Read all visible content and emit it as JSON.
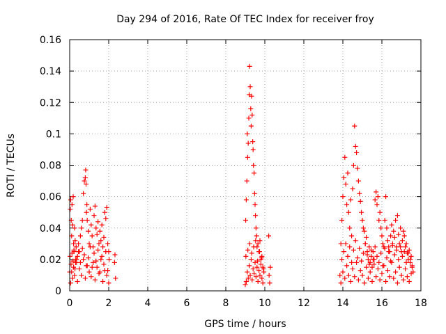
{
  "chart_data": {
    "type": "scatter",
    "title": "Day 294 of 2016, Rate Of TEC Index for receiver froy",
    "xlabel": "GPS time / hours",
    "ylabel": "ROTI / TECUs",
    "xlim": [
      0,
      18
    ],
    "ylim": [
      0,
      0.16
    ],
    "xticks": [
      0,
      2,
      4,
      6,
      8,
      10,
      12,
      14,
      16,
      18
    ],
    "xtick_labels": [
      "0",
      "2",
      "4",
      "6",
      "8",
      "10",
      "12",
      "14",
      "16",
      "18"
    ],
    "yticks": [
      0,
      0.02,
      0.04,
      0.06,
      0.08,
      0.1,
      0.12,
      0.14,
      0.16
    ],
    "ytick_labels": [
      "0",
      "0.02",
      "0.04",
      "0.06",
      "0.08",
      "0.1",
      "0.12",
      "0.14",
      "0.16"
    ],
    "grid": true,
    "marker": "+",
    "color": "#ff0000",
    "series": [
      {
        "name": "ROTI",
        "x": [
          0.0,
          0.03,
          0.05,
          0.08,
          0.1,
          0.12,
          0.15,
          0.18,
          0.2,
          0.22,
          0.25,
          0.28,
          0.3,
          0.33,
          0.35,
          0.4,
          0.45,
          0.5,
          0.55,
          0.6,
          0.65,
          0.7,
          0.75,
          0.8,
          0.82,
          0.84,
          0.86,
          0.88,
          0.9,
          0.95,
          1.0,
          1.05,
          1.1,
          1.15,
          1.2,
          1.25,
          1.3,
          1.35,
          1.4,
          1.45,
          1.5,
          1.55,
          1.6,
          1.65,
          1.7,
          1.75,
          1.8,
          1.85,
          1.9,
          1.95,
          2.0,
          2.02,
          2.3,
          2.32,
          2.35,
          0.05,
          0.1,
          0.15,
          0.2,
          0.25,
          0.3,
          0.4,
          0.5,
          0.6,
          0.7,
          0.8,
          0.9,
          1.0,
          1.1,
          1.2,
          1.3,
          1.4,
          1.5,
          1.6,
          1.7,
          1.8,
          1.9,
          2.0,
          0.02,
          0.07,
          0.12,
          0.17,
          0.22,
          0.27,
          0.35,
          0.45,
          0.55,
          0.65,
          0.75,
          0.85,
          0.95,
          1.05,
          1.15,
          1.25,
          1.35,
          1.45,
          1.55,
          1.65,
          1.75,
          1.85,
          1.95,
          9.0,
          9.02,
          9.05,
          9.08,
          9.1,
          9.12,
          9.15,
          9.18,
          9.2,
          9.22,
          9.25,
          9.28,
          9.3,
          9.32,
          9.35,
          9.38,
          9.4,
          9.42,
          9.45,
          9.48,
          9.5,
          9.52,
          9.55,
          9.58,
          9.6,
          9.65,
          9.7,
          9.75,
          9.8,
          9.85,
          9.9,
          9.95,
          10.2,
          10.22,
          10.25,
          10.28,
          9.05,
          9.1,
          9.15,
          9.2,
          9.25,
          9.3,
          9.35,
          9.4,
          9.45,
          9.5,
          9.55,
          9.6,
          9.65,
          9.7,
          9.75,
          9.8,
          9.85,
          9.9,
          9.03,
          9.13,
          9.23,
          9.33,
          9.43,
          9.53,
          9.63,
          9.73,
          9.83,
          9.93,
          13.85,
          13.9,
          13.95,
          14.0,
          14.05,
          14.1,
          14.15,
          14.2,
          14.25,
          14.3,
          14.35,
          14.4,
          14.45,
          14.5,
          14.55,
          14.6,
          14.65,
          14.7,
          14.75,
          14.8,
          14.85,
          14.9,
          14.95,
          15.0,
          15.05,
          15.1,
          15.15,
          15.2,
          15.25,
          15.3,
          15.35,
          15.4,
          15.45,
          15.5,
          15.55,
          15.6,
          15.65,
          15.7,
          15.75,
          15.8,
          15.85,
          15.9,
          15.95,
          16.0,
          16.05,
          16.1,
          16.15,
          16.2,
          16.25,
          16.3,
          16.35,
          16.4,
          16.45,
          16.5,
          16.55,
          16.6,
          16.65,
          16.7,
          16.75,
          16.8,
          16.85,
          16.9,
          16.95,
          17.0,
          17.05,
          17.1,
          17.15,
          17.2,
          17.25,
          17.3,
          17.35,
          17.4,
          17.45,
          17.5,
          17.55,
          17.6,
          13.9,
          14.0,
          14.1,
          14.2,
          14.3,
          14.4,
          14.5,
          14.6,
          14.7,
          14.8,
          14.9,
          15.0,
          15.1,
          15.2,
          15.3,
          15.4,
          15.5,
          15.6,
          15.7,
          15.8,
          15.9,
          16.0,
          16.1,
          16.2,
          16.3,
          16.4,
          16.5,
          16.6,
          16.7,
          16.8,
          16.9,
          17.0,
          17.1,
          17.2,
          17.3,
          17.4,
          17.5,
          13.95,
          14.05,
          14.15,
          14.25,
          14.35,
          14.45,
          14.55,
          14.65,
          14.75,
          14.85,
          14.95,
          15.05,
          15.15,
          15.25,
          15.35,
          15.45,
          15.55,
          15.65,
          15.75,
          15.85,
          15.95,
          16.05,
          16.15,
          16.25,
          16.35,
          16.45,
          16.55,
          16.65,
          16.75,
          16.85,
          16.95,
          17.05,
          17.15,
          17.25,
          17.35,
          17.45,
          17.55
        ],
        "y": [
          0.012,
          0.052,
          0.058,
          0.045,
          0.035,
          0.055,
          0.042,
          0.06,
          0.03,
          0.025,
          0.04,
          0.032,
          0.02,
          0.028,
          0.018,
          0.022,
          0.03,
          0.025,
          0.035,
          0.04,
          0.045,
          0.062,
          0.07,
          0.072,
          0.077,
          0.068,
          0.05,
          0.055,
          0.045,
          0.038,
          0.03,
          0.052,
          0.042,
          0.035,
          0.028,
          0.048,
          0.054,
          0.04,
          0.036,
          0.044,
          0.03,
          0.038,
          0.032,
          0.042,
          0.028,
          0.034,
          0.05,
          0.046,
          0.053,
          0.03,
          0.025,
          0.02,
          0.018,
          0.023,
          0.008,
          0.005,
          0.012,
          0.008,
          0.015,
          0.01,
          0.018,
          0.006,
          0.014,
          0.01,
          0.02,
          0.008,
          0.016,
          0.012,
          0.009,
          0.018,
          0.007,
          0.015,
          0.011,
          0.02,
          0.006,
          0.013,
          0.01,
          0.005,
          0.022,
          0.017,
          0.024,
          0.019,
          0.026,
          0.014,
          0.02,
          0.025,
          0.018,
          0.027,
          0.023,
          0.016,
          0.021,
          0.028,
          0.015,
          0.024,
          0.019,
          0.026,
          0.012,
          0.022,
          0.017,
          0.025,
          0.013,
          0.004,
          0.045,
          0.058,
          0.07,
          0.1,
          0.085,
          0.094,
          0.11,
          0.125,
          0.143,
          0.13,
          0.116,
          0.105,
          0.124,
          0.112,
          0.095,
          0.09,
          0.08,
          0.075,
          0.062,
          0.055,
          0.048,
          0.04,
          0.035,
          0.028,
          0.03,
          0.025,
          0.032,
          0.02,
          0.022,
          0.015,
          0.012,
          0.035,
          0.01,
          0.005,
          0.015,
          0.006,
          0.012,
          0.008,
          0.016,
          0.01,
          0.02,
          0.007,
          0.014,
          0.011,
          0.018,
          0.009,
          0.015,
          0.006,
          0.013,
          0.01,
          0.017,
          0.008,
          0.005,
          0.022,
          0.026,
          0.03,
          0.024,
          0.028,
          0.032,
          0.019,
          0.025,
          0.021,
          0.014,
          0.01,
          0.03,
          0.045,
          0.06,
          0.072,
          0.085,
          0.068,
          0.055,
          0.075,
          0.05,
          0.04,
          0.058,
          0.035,
          0.065,
          0.08,
          0.105,
          0.092,
          0.088,
          0.078,
          0.07,
          0.062,
          0.057,
          0.05,
          0.045,
          0.04,
          0.038,
          0.03,
          0.034,
          0.025,
          0.02,
          0.028,
          0.018,
          0.022,
          0.015,
          0.025,
          0.02,
          0.058,
          0.063,
          0.055,
          0.06,
          0.045,
          0.05,
          0.04,
          0.035,
          0.03,
          0.028,
          0.045,
          0.06,
          0.04,
          0.032,
          0.028,
          0.025,
          0.035,
          0.042,
          0.03,
          0.038,
          0.034,
          0.045,
          0.028,
          0.048,
          0.036,
          0.03,
          0.04,
          0.025,
          0.032,
          0.038,
          0.035,
          0.028,
          0.03,
          0.024,
          0.02,
          0.026,
          0.018,
          0.022,
          0.016,
          0.012,
          0.005,
          0.012,
          0.008,
          0.016,
          0.01,
          0.006,
          0.014,
          0.009,
          0.018,
          0.007,
          0.013,
          0.01,
          0.005,
          0.015,
          0.008,
          0.012,
          0.006,
          0.017,
          0.009,
          0.014,
          0.007,
          0.011,
          0.016,
          0.006,
          0.013,
          0.009,
          0.018,
          0.008,
          0.012,
          0.005,
          0.015,
          0.01,
          0.007,
          0.014,
          0.009,
          0.006,
          0.011,
          0.02,
          0.025,
          0.03,
          0.022,
          0.028,
          0.018,
          0.026,
          0.032,
          0.021,
          0.027,
          0.019,
          0.024,
          0.03,
          0.023,
          0.017,
          0.026,
          0.02,
          0.028,
          0.022,
          0.018,
          0.024,
          0.016,
          0.027,
          0.021,
          0.025,
          0.019,
          0.029,
          0.023,
          0.026,
          0.02,
          0.028,
          0.022,
          0.025,
          0.018,
          0.024,
          0.02,
          0.015
        ]
      }
    ]
  }
}
